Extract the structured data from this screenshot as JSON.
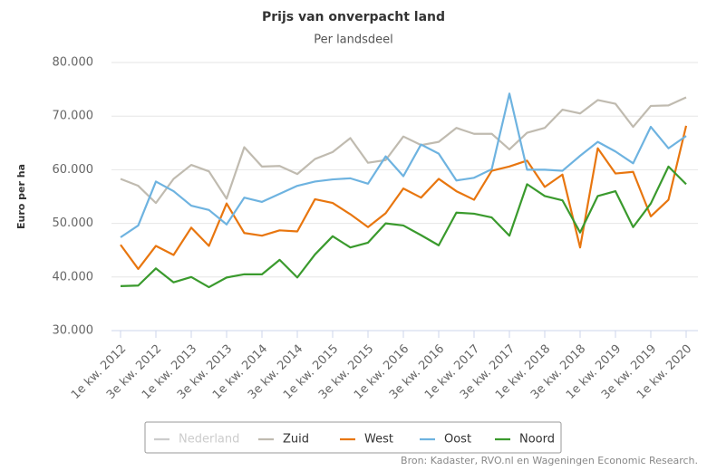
{
  "chart_data": {
    "type": "line",
    "title": "Prijs van onverpacht land",
    "subtitle": "Per landsdeel",
    "y_label": "Euro per ha",
    "credits": "Bron: Kadaster, RVO.nl en Wageningen Economic Research.",
    "categories": [
      "1e kw. 2012",
      null,
      "3e kw. 2012",
      null,
      "1e kw. 2013",
      null,
      "3e kw. 2013",
      null,
      "1e kw. 2014",
      null,
      "3e kw. 2014",
      null,
      "1e kw. 2015",
      null,
      "3e kw. 2015",
      null,
      "1e kw. 2016",
      null,
      "3e kw. 2016",
      null,
      "1e kw. 2017",
      null,
      "3e kw. 2017",
      null,
      "1e kw. 2018",
      null,
      "3e kw. 2018",
      null,
      "1e kw. 2019",
      null,
      "3e kw. 2019",
      null,
      "1e kw. 2020"
    ],
    "ylim": [
      30000,
      80000
    ],
    "yticks": [
      {
        "value": 30000,
        "label": "30.000"
      },
      {
        "value": 40000,
        "label": "40.000"
      },
      {
        "value": 50000,
        "label": "50.000"
      },
      {
        "value": 60000,
        "label": "60.000"
      },
      {
        "value": 70000,
        "label": "70.000"
      },
      {
        "value": 80000,
        "label": "80.000"
      }
    ],
    "grid": true,
    "legend": "bottom",
    "series": [
      {
        "name": "Nederland",
        "color": "#cccccc",
        "visible": false,
        "values": [
          null,
          null,
          null,
          null,
          null,
          null,
          null,
          null,
          null,
          null,
          null,
          null,
          null,
          null,
          null,
          null,
          null,
          null,
          null,
          null,
          null,
          null,
          null,
          null,
          null,
          null,
          null,
          null,
          null,
          null,
          null,
          null,
          null
        ]
      },
      {
        "name": "Zuid",
        "color": "#c0bbb0",
        "values": [
          58300,
          57000,
          53800,
          58300,
          60900,
          59700,
          54600,
          64200,
          60600,
          60700,
          59200,
          62000,
          63300,
          65900,
          61300,
          61800,
          66200,
          64600,
          65200,
          67800,
          66700,
          66700,
          63800,
          66900,
          67800,
          71200,
          70500,
          73000,
          72300,
          68000,
          71900,
          72000,
          73500
        ]
      },
      {
        "name": "West",
        "color": "#e8760f",
        "values": [
          46000,
          41500,
          45800,
          44100,
          49200,
          45800,
          53700,
          48200,
          47700,
          48700,
          48500,
          54500,
          53800,
          51700,
          49300,
          51900,
          56500,
          54800,
          58300,
          56000,
          54400,
          59800,
          60600,
          61700,
          56800,
          59100,
          45500,
          64000,
          59300,
          59600,
          51300,
          54400,
          68200
        ]
      },
      {
        "name": "Oost",
        "color": "#6eb3e0",
        "values": [
          47400,
          49600,
          57800,
          56000,
          53300,
          52500,
          49800,
          54800,
          54000,
          55500,
          57000,
          57800,
          58200,
          58400,
          57400,
          62500,
          58800,
          64700,
          63000,
          58000,
          58500,
          60100,
          74200,
          60000,
          60000,
          59800,
          62600,
          65200,
          63400,
          61200,
          68000,
          64000,
          66300
        ]
      },
      {
        "name": "Noord",
        "color": "#3a9a2d",
        "values": [
          38300,
          38400,
          41600,
          39000,
          40000,
          38100,
          39900,
          40500,
          40500,
          43200,
          39900,
          44200,
          47600,
          45500,
          46400,
          50000,
          49600,
          47800,
          45900,
          52000,
          51800,
          51100,
          47700,
          57300,
          55100,
          54300,
          48300,
          55100,
          56000,
          49300,
          53700,
          60600,
          57300
        ]
      }
    ]
  }
}
